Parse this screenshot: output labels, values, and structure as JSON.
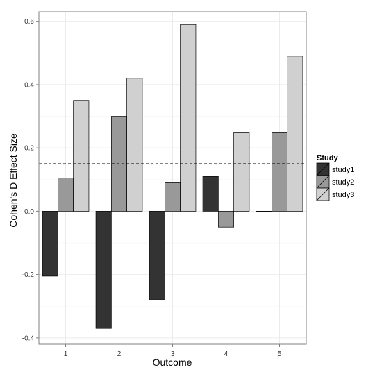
{
  "chart_data": {
    "type": "bar",
    "xlabel": "Outcome",
    "ylabel": "Cohen's D Effect Size",
    "categories": [
      "1",
      "2",
      "3",
      "4",
      "5"
    ],
    "series": [
      {
        "name": "study1",
        "values": [
          -0.205,
          -0.37,
          -0.28,
          0.11,
          0.0
        ]
      },
      {
        "name": "study2",
        "values": [
          0.105,
          0.3,
          0.09,
          -0.05,
          0.25
        ]
      },
      {
        "name": "study3",
        "values": [
          0.35,
          0.42,
          0.59,
          0.25,
          0.49
        ]
      }
    ],
    "ylim": [
      -0.42,
      0.63
    ],
    "yticks": [
      -0.4,
      -0.2,
      0.0,
      0.2,
      0.4,
      0.6
    ],
    "ytick_labels": [
      "-0.4",
      "-0.2",
      "0.0",
      "0.2",
      "0.4",
      "0.6"
    ],
    "reference_line": {
      "value": 0.15,
      "style": "dashed",
      "color": "#000000"
    },
    "legend": {
      "title": "Study",
      "position": "right"
    },
    "colors": {
      "study1": "#333333",
      "study2": "#999999",
      "study3": "#d0d0d0"
    },
    "grid": true,
    "background": "#ffffff",
    "gridline_color": "#ebebeb",
    "panel_border_color": "#7f7f7f"
  }
}
